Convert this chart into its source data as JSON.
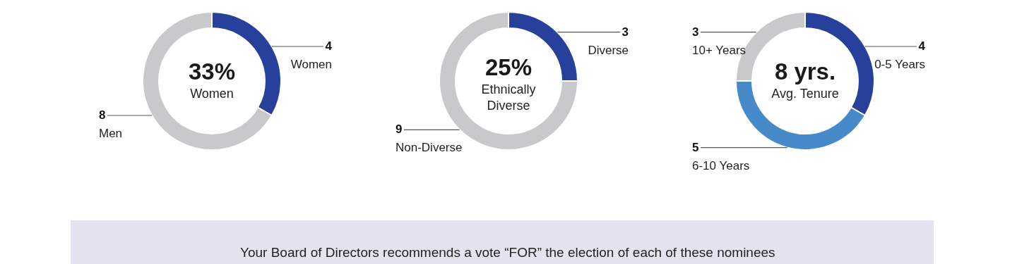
{
  "chart_data": [
    {
      "type": "donut",
      "title": "33%",
      "subtitle": "Women",
      "categories": [
        "Women",
        "Men"
      ],
      "values": [
        4,
        8
      ],
      "colors": [
        "#27409b",
        "#c8c9cb"
      ],
      "data_labels": true
    },
    {
      "type": "donut",
      "title": "25%",
      "subtitle": "Ethnically Diverse",
      "categories": [
        "Diverse",
        "Non-Diverse"
      ],
      "values": [
        3,
        9
      ],
      "colors": [
        "#27409b",
        "#c8c9cb"
      ],
      "data_labels": true
    },
    {
      "type": "donut",
      "title": "8 yrs.",
      "subtitle": "Avg. Tenure",
      "categories": [
        "0-5 Years",
        "6-10 Years",
        "10+ Years"
      ],
      "values": [
        4,
        5,
        3
      ],
      "colors": [
        "#27409b",
        "#468ac9",
        "#c8c9cb"
      ],
      "data_labels": true
    },
    {
      "type": "other",
      "annotations": [
        "Your Board of Directors recommends a vote “FOR” the election of each of these nominees as Director."
      ]
    }
  ]
}
